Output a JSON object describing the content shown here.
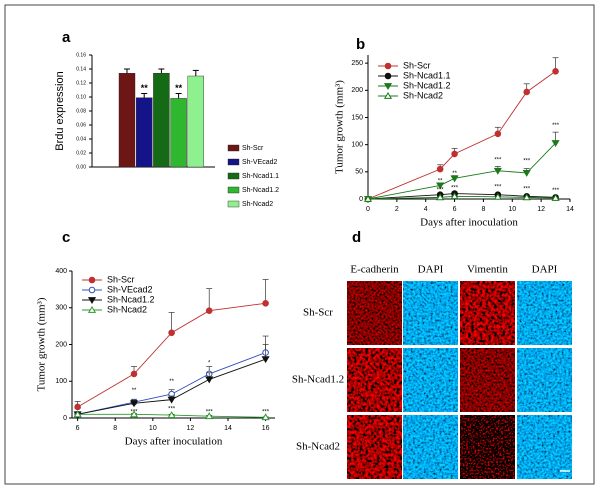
{
  "chart_data": [
    {
      "type": "bar",
      "panel_label": "a",
      "y_label": "Brdu expression",
      "categories": [
        "Sh-Scr",
        "Sh-VEcad2",
        "Sh-Ncad1.1",
        "Sh-Ncad1.2",
        "Sh-Ncad2"
      ],
      "values": [
        0.134,
        0.099,
        0.134,
        0.098,
        0.13
      ],
      "errors": [
        0.006,
        0.006,
        0.006,
        0.007,
        0.008
      ],
      "annotations": [
        null,
        "**",
        null,
        "**",
        null
      ],
      "colors": [
        "#6e1616",
        "#141488",
        "#156a15",
        "#2fb82f",
        "#8ef08e"
      ],
      "ylim": [
        0,
        0.16
      ],
      "yticks": [
        {
          "value": 0,
          "label": "0.00"
        },
        {
          "value": 0.02,
          "label": "0.02"
        },
        {
          "value": 0.04,
          "label": "0.04"
        },
        {
          "value": 0.06,
          "label": "0.06"
        },
        {
          "value": 0.08,
          "label": "0.08"
        },
        {
          "value": 0.1,
          "label": "0.10"
        },
        {
          "value": 0.12,
          "label": "0.12"
        },
        {
          "value": 0.14,
          "label": "0.14"
        },
        {
          "value": 0.16,
          "label": "0.16"
        }
      ]
    },
    {
      "type": "line",
      "panel_label": "b",
      "y_label": "Tumor growth (mm³)",
      "x_label": "Days after inoculation",
      "x": [
        0,
        5,
        6,
        9,
        11,
        13
      ],
      "series": [
        {
          "name": "Sh-Scr",
          "color": "#c03030",
          "marker": "filled-circle",
          "values": [
            0,
            55,
            83,
            120,
            197,
            235
          ],
          "errors": [
            0,
            8,
            10,
            12,
            15,
            25
          ]
        },
        {
          "name": "Sh-Ncad1.1",
          "color": "#111111",
          "marker": "filled-circle",
          "values": [
            0,
            8,
            10,
            8,
            5,
            3
          ],
          "errors": [
            0,
            2,
            3,
            2,
            2,
            1
          ]
        },
        {
          "name": "Sh-Ncad1.2",
          "color": "#1a7a1a",
          "marker": "filled-triangle-down",
          "values": [
            0,
            25,
            38,
            52,
            48,
            103
          ],
          "errors": [
            0,
            4,
            5,
            8,
            8,
            20
          ]
        },
        {
          "name": "Sh-Ncad2",
          "color": "#1a7a1a",
          "marker": "open-triangle-up",
          "values": [
            0,
            3,
            5,
            4,
            3,
            2
          ],
          "errors": [
            0,
            1,
            1,
            1,
            1,
            1
          ]
        }
      ],
      "annotations": [
        {
          "text": "**",
          "x": 5,
          "y": 33
        },
        {
          "text": "***",
          "x": 5,
          "y": 17
        },
        {
          "text": "**",
          "x": 6,
          "y": 47
        },
        {
          "text": "***",
          "x": 6,
          "y": 20
        },
        {
          "text": "***",
          "x": 9,
          "y": 72
        },
        {
          "text": "***",
          "x": 9,
          "y": 22
        },
        {
          "text": "***",
          "x": 11,
          "y": 70
        },
        {
          "text": "***",
          "x": 11,
          "y": 19
        },
        {
          "text": "***",
          "x": 13,
          "y": 135
        },
        {
          "text": "***",
          "x": 13,
          "y": 16
        }
      ],
      "xlim": [
        0,
        14
      ],
      "xticks": [
        0,
        2,
        4,
        6,
        8,
        10,
        12,
        14
      ],
      "ylim": [
        0,
        265
      ],
      "yticks": [
        0,
        50,
        100,
        150,
        200,
        250
      ]
    },
    {
      "type": "line",
      "panel_label": "c",
      "y_label": "Tumor growth (mm³)",
      "x_label": "Days after inoculation",
      "x": [
        6,
        9,
        11,
        13,
        16
      ],
      "series": [
        {
          "name": "Sh-Scr",
          "color": "#c03030",
          "marker": "filled-circle",
          "values": [
            30,
            120,
            232,
            292,
            312
          ],
          "errors": [
            15,
            20,
            55,
            60,
            65
          ]
        },
        {
          "name": "Sh-VEcad2",
          "color": "#3050c0",
          "marker": "open-circle",
          "values": [
            10,
            43,
            65,
            120,
            178
          ],
          "errors": [
            5,
            8,
            12,
            20,
            45
          ]
        },
        {
          "name": "Sh-Ncad1.2",
          "color": "#111111",
          "marker": "filled-triangle-down",
          "values": [
            10,
            40,
            50,
            105,
            160
          ],
          "errors": [
            5,
            8,
            10,
            18,
            40
          ]
        },
        {
          "name": "Sh-Ncad2",
          "color": "#2a9a2a",
          "marker": "open-triangle-up",
          "values": [
            10,
            10,
            8,
            5,
            2
          ],
          "errors": [
            2,
            2,
            2,
            2,
            1
          ]
        }
      ],
      "annotations": [
        {
          "text": "**",
          "x": 9,
          "y": 75
        },
        {
          "text": "***",
          "x": 9,
          "y": 17
        },
        {
          "text": "**",
          "x": 11,
          "y": 100
        },
        {
          "text": "***",
          "x": 11,
          "y": 25
        },
        {
          "text": "*",
          "x": 13,
          "y": 150
        },
        {
          "text": "***",
          "x": 13,
          "y": 17
        },
        {
          "text": "***",
          "x": 16,
          "y": 17
        }
      ],
      "xlim": [
        5.7,
        16.5
      ],
      "xticks": [
        6,
        8,
        10,
        12,
        14,
        16
      ],
      "ylim": [
        0,
        400
      ],
      "yticks": [
        0,
        100,
        200,
        300,
        400
      ]
    }
  ],
  "images": {
    "panel_label": "d",
    "columns": [
      "E-cadherin",
      "DAPI",
      "Vimentin",
      "DAPI"
    ],
    "rows": [
      "Sh-Scr",
      "Sh-Ncad1.2",
      "Sh-Ncad2"
    ]
  }
}
